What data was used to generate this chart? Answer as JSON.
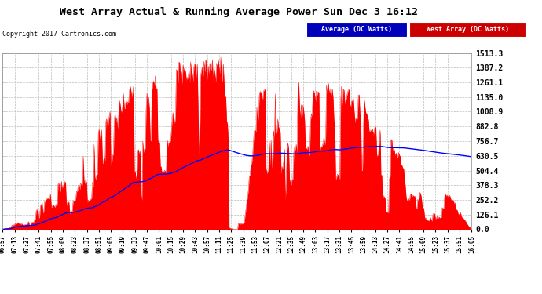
{
  "title": "West Array Actual & Running Average Power Sun Dec 3 16:12",
  "copyright": "Copyright 2017 Cartronics.com",
  "legend_avg": "Average (DC Watts)",
  "legend_west": "West Array (DC Watts)",
  "yticks": [
    0.0,
    126.1,
    252.2,
    378.3,
    504.4,
    630.5,
    756.7,
    882.8,
    1008.9,
    1135.0,
    1261.1,
    1387.2,
    1513.3
  ],
  "ymax": 1513.3,
  "bg_color": "#ffffff",
  "plot_bg_color": "#ffffff",
  "bar_color": "#ff0000",
  "avg_line_color": "#0000ff",
  "grid_color": "#aaaaaa",
  "title_color": "#000000",
  "tick_label_color": "#000000",
  "xtick_labels": [
    "06:57",
    "07:13",
    "07:27",
    "07:41",
    "07:55",
    "08:09",
    "08:23",
    "08:37",
    "08:51",
    "09:05",
    "09:19",
    "09:33",
    "09:47",
    "10:01",
    "10:15",
    "10:29",
    "10:43",
    "10:57",
    "11:11",
    "11:25",
    "11:39",
    "11:53",
    "12:07",
    "12:21",
    "12:35",
    "12:49",
    "13:03",
    "13:17",
    "13:31",
    "13:45",
    "13:59",
    "14:13",
    "14:27",
    "14:41",
    "14:55",
    "15:09",
    "15:23",
    "15:37",
    "15:51",
    "16:05"
  ]
}
